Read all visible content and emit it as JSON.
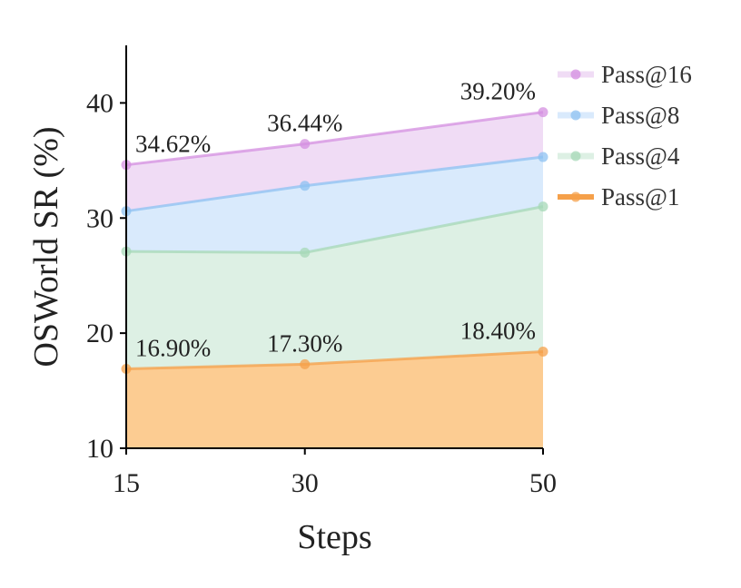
{
  "chart_data": {
    "type": "area",
    "xlabel": "Steps",
    "ylabel": "OSWorld SR (%)",
    "x": [
      15,
      30,
      50
    ],
    "xticks": [
      15,
      30,
      50
    ],
    "yticks": [
      10,
      20,
      30,
      40
    ],
    "xlim": [
      15,
      50
    ],
    "ylim": [
      10,
      45
    ],
    "grid": false,
    "legend_position": "top-right",
    "series": [
      {
        "name": "Pass@16",
        "values": [
          34.62,
          36.44,
          39.2
        ],
        "color": "#d48fe0",
        "fill": "#f0dcf5",
        "labels": [
          "34.62%",
          "36.44%",
          "39.20%"
        ]
      },
      {
        "name": "Pass@8",
        "values": [
          30.6,
          32.8,
          35.3
        ],
        "color": "#8ec2f2",
        "fill": "#d9eafc"
      },
      {
        "name": "Pass@4",
        "values": [
          27.1,
          27.0,
          31.0
        ],
        "color": "#a6d8b7",
        "fill": "#ddf0e4"
      },
      {
        "name": "Pass@1",
        "values": [
          16.9,
          17.3,
          18.4
        ],
        "color": "#f5a04a",
        "fill": "#fccc92",
        "labels": [
          "16.90%",
          "17.30%",
          "18.40%"
        ]
      }
    ]
  }
}
